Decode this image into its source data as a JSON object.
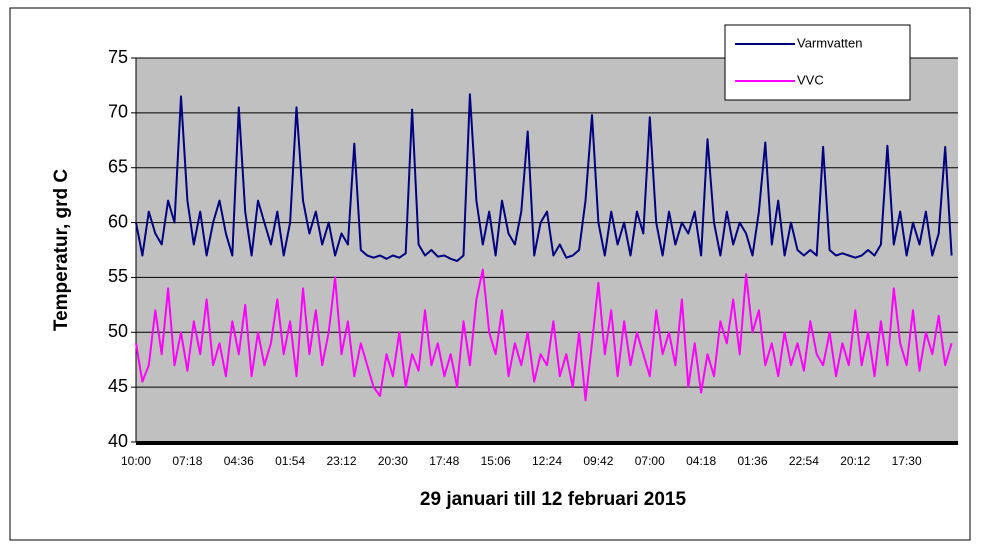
{
  "chart_data": {
    "type": "line",
    "xlabel": "29 januari till 12 februari 2015",
    "ylabel": "Temperatur, grd C",
    "ylim": [
      40,
      75
    ],
    "yticks": [
      40,
      45,
      50,
      55,
      60,
      65,
      70,
      75
    ],
    "grid": true,
    "legend": "upper right",
    "categories": [
      "10:00",
      null,
      null,
      null,
      null,
      null,
      null,
      null,
      "07:18",
      null,
      null,
      null,
      null,
      null,
      null,
      null,
      "04:36",
      null,
      null,
      null,
      null,
      null,
      null,
      null,
      "01:54",
      null,
      null,
      null,
      null,
      null,
      null,
      null,
      "23:12",
      null,
      null,
      null,
      null,
      null,
      null,
      null,
      "20:30",
      null,
      null,
      null,
      null,
      null,
      null,
      null,
      "17:48",
      null,
      null,
      null,
      null,
      null,
      null,
      null,
      "15:06",
      null,
      null,
      null,
      null,
      null,
      null,
      null,
      "12:24",
      null,
      null,
      null,
      null,
      null,
      null,
      null,
      "09:42",
      null,
      null,
      null,
      null,
      null,
      null,
      null,
      "07:00",
      null,
      null,
      null,
      null,
      null,
      null,
      null,
      "04:18",
      null,
      null,
      null,
      null,
      null,
      null,
      null,
      "01:36",
      null,
      null,
      null,
      null,
      null,
      null,
      null,
      "22:54",
      null,
      null,
      null,
      null,
      null,
      null,
      null,
      "20:12",
      null,
      null,
      null,
      null,
      null,
      null,
      null,
      "17:30",
      null,
      null,
      null,
      null,
      null,
      null,
      null
    ],
    "series": [
      {
        "name": "Varmvatten",
        "color": "#000080",
        "values": [
          60,
          57,
          61,
          59,
          58,
          62,
          60,
          71.5,
          62,
          58,
          61,
          57,
          60,
          62,
          59,
          57,
          70.5,
          61,
          57,
          62,
          60,
          58,
          61,
          57,
          60,
          70.5,
          62,
          59,
          61,
          58,
          60,
          57,
          59,
          58,
          67.2,
          57.5,
          57,
          56.8,
          57,
          56.7,
          57,
          56.8,
          57.2,
          70.3,
          58,
          57,
          57.5,
          56.9,
          57,
          56.7,
          56.5,
          57,
          71.7,
          62,
          58,
          61,
          57,
          62,
          59,
          58,
          61,
          68.3,
          57,
          60,
          61,
          57,
          58,
          56.8,
          57,
          57.5,
          62,
          69.8,
          60,
          57,
          61,
          58,
          60,
          57,
          61,
          59,
          69.6,
          60,
          57,
          61,
          58,
          60,
          59,
          61,
          57,
          67.6,
          60,
          57,
          61,
          58,
          60,
          59,
          57,
          61,
          67.3,
          58,
          62,
          57,
          60,
          57.5,
          57,
          57.5,
          57,
          66.9,
          57.5,
          57,
          57.2,
          57,
          56.8,
          57,
          57.5,
          57,
          58,
          67,
          58,
          61,
          57,
          60,
          58,
          61,
          57,
          59,
          66.9,
          57
        ]
      },
      {
        "name": "VVC",
        "color": "#ff00ff",
        "values": [
          49,
          45.5,
          47,
          52,
          48,
          54,
          47,
          50,
          46.5,
          51,
          48,
          53,
          47,
          49,
          46,
          51,
          48,
          52.5,
          46,
          50,
          47,
          49,
          53,
          48,
          51,
          46,
          54,
          48,
          52,
          47,
          50,
          55,
          48,
          51,
          46,
          49,
          47,
          45,
          44.2,
          48,
          46,
          50,
          45,
          48,
          46.5,
          52,
          47,
          49,
          46,
          48,
          45,
          51,
          47,
          53,
          55.7,
          50,
          48,
          52,
          46,
          49,
          47,
          50,
          45.5,
          48,
          47,
          51,
          46,
          48,
          45,
          50,
          43.8,
          49,
          54.5,
          48,
          52,
          46,
          51,
          47,
          50,
          48,
          46,
          52,
          48,
          50,
          47,
          53,
          45,
          49,
          44.5,
          48,
          46,
          51,
          49,
          53,
          48,
          55.3,
          50,
          52,
          47,
          49,
          46,
          50,
          47,
          49,
          46.5,
          51,
          48,
          47,
          50,
          46,
          49,
          47,
          52,
          47,
          50,
          46,
          51,
          47,
          54,
          49,
          47,
          52,
          46.5,
          50,
          48,
          51.5,
          47,
          49
        ]
      }
    ]
  }
}
